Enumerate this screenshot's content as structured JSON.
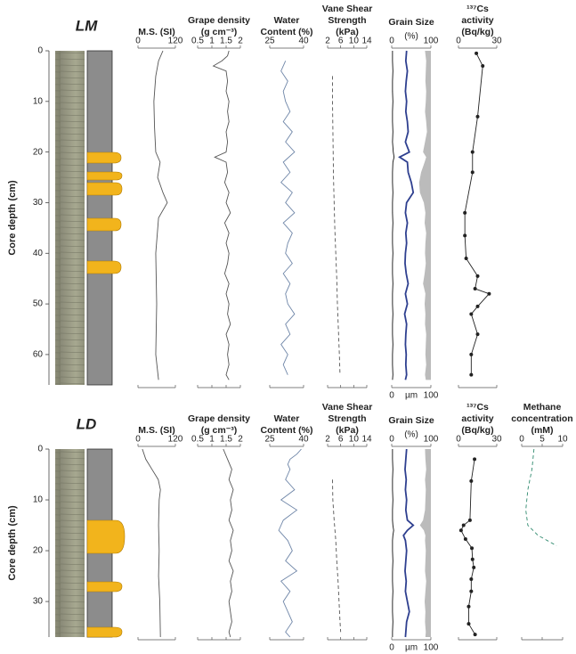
{
  "chart_data": [
    {
      "label": "LM",
      "ylabel": "Core depth (cm)",
      "ylim": [
        0,
        66
      ],
      "yticks": [
        0,
        10,
        20,
        30,
        40,
        50,
        60
      ],
      "tracks": [
        {
          "type": "line",
          "title": [
            "M.S. (SI)"
          ],
          "xlim": [
            0,
            120
          ],
          "xticks": [
            0,
            120
          ],
          "color": "#555555",
          "depth": [
            0,
            2,
            5,
            10,
            15,
            20,
            22,
            25,
            28,
            30,
            33,
            40,
            50,
            60,
            65
          ],
          "values": [
            80,
            66,
            57,
            51,
            53,
            57,
            71,
            63,
            80,
            94,
            66,
            57,
            60,
            57,
            66
          ]
        },
        {
          "type": "line",
          "title": [
            "Grape density",
            "(g cm⁻³)"
          ],
          "xlim": [
            0.5,
            2
          ],
          "xticks": [
            0.5,
            1,
            1.5,
            2
          ],
          "color": "#555555",
          "depth": [
            0,
            1,
            2,
            3,
            4,
            6,
            8,
            10,
            12,
            14,
            16,
            18,
            20,
            21,
            22,
            24,
            26,
            28,
            30,
            32,
            34,
            36,
            38,
            40,
            42,
            44,
            46,
            48,
            50,
            52,
            54,
            56,
            58,
            60,
            62,
            64,
            65
          ],
          "values": [
            1.6,
            1.55,
            1.35,
            1.05,
            1.5,
            1.55,
            1.5,
            1.6,
            1.55,
            1.6,
            1.5,
            1.55,
            1.5,
            1.1,
            1.5,
            1.55,
            1.45,
            1.6,
            1.5,
            1.65,
            1.45,
            1.6,
            1.5,
            1.6,
            1.55,
            1.45,
            1.6,
            1.5,
            1.6,
            1.55,
            1.65,
            1.5,
            1.6,
            1.55,
            1.6,
            1.5,
            1.6
          ]
        },
        {
          "type": "line",
          "title": [
            "Water",
            "Content (%)"
          ],
          "xlim": [
            25,
            40
          ],
          "xticks": [
            25,
            40
          ],
          "color": "#6f86a8",
          "depth": [
            2,
            4,
            6,
            8,
            10,
            12,
            14,
            16,
            18,
            20,
            22,
            24,
            26,
            28,
            30,
            32,
            34,
            36,
            38,
            40,
            42,
            44,
            46,
            48,
            50,
            52,
            54,
            56,
            58,
            60,
            62,
            64
          ],
          "values": [
            32,
            30,
            33,
            31,
            32,
            34,
            31,
            35,
            32,
            36,
            31,
            34,
            30,
            35,
            32,
            36,
            31,
            35,
            33,
            32,
            35,
            31,
            34,
            32,
            33,
            36,
            32,
            34,
            30,
            33,
            31,
            33
          ]
        },
        {
          "type": "line",
          "title": [
            "Vane Shear",
            "Strength",
            "(kPa)"
          ],
          "xlim": [
            2,
            14
          ],
          "xticks": [
            2,
            6,
            10,
            14
          ],
          "color": "#555555",
          "dashed": true,
          "depth": [
            5,
            10,
            15,
            20,
            25,
            30,
            35,
            40,
            45,
            50,
            55,
            60,
            64
          ],
          "values": [
            3.5,
            3.5,
            3.6,
            3.7,
            3.8,
            4,
            4.2,
            4.5,
            4.8,
            5,
            5.3,
            5.6,
            5.8
          ]
        },
        {
          "type": "line",
          "title": [
            "Grain Size"
          ],
          "subtitle": "(%)",
          "xlim": [
            0,
            100
          ],
          "xticks": [
            0,
            100
          ],
          "x2label": "µm",
          "x2ticks": [
            0,
            100
          ],
          "depth": [
            0,
            2,
            4,
            6,
            8,
            10,
            12,
            14,
            16,
            18,
            20,
            21,
            22,
            24,
            26,
            28,
            30,
            32,
            34,
            36,
            38,
            40,
            42,
            44,
            46,
            48,
            50,
            52,
            54,
            56,
            58,
            60,
            62,
            64,
            65
          ],
          "series": [
            {
              "color": "#bbbbbb",
              "fill": true,
              "values": [
                85,
                88,
                87,
                86,
                88,
                87,
                85,
                88,
                90,
                85,
                80,
                88,
                84,
                75,
                70,
                72,
                82,
                86,
                84,
                88,
                86,
                85,
                87,
                84,
                80,
                86,
                84,
                86,
                85,
                88,
                87,
                86,
                88,
                85,
                87
              ]
            },
            {
              "color": "#2e3f8f",
              "values": [
                38,
                36,
                40,
                37,
                35,
                38,
                36,
                40,
                42,
                35,
                45,
                20,
                40,
                42,
                50,
                55,
                38,
                35,
                40,
                36,
                38,
                35,
                34,
                37,
                42,
                35,
                40,
                33,
                38,
                36,
                35,
                37,
                36,
                38,
                35
              ]
            },
            {
              "color": "#111111",
              "values": [
                2,
                2,
                3,
                2,
                2,
                3,
                2,
                2,
                3,
                2,
                4,
                6,
                3,
                2,
                2,
                3,
                2,
                2,
                3,
                2,
                2,
                3,
                2,
                2,
                3,
                2,
                2,
                3,
                2,
                2,
                3,
                2,
                2,
                3,
                2
              ]
            }
          ]
        },
        {
          "type": "line",
          "title": [
            "¹³⁷Cs",
            "activity",
            "(Bq/kg)"
          ],
          "xlim": [
            0,
            30
          ],
          "xticks": [
            0,
            30
          ],
          "color": "#222222",
          "markers": true,
          "depth": [
            0.5,
            3,
            13,
            20,
            24,
            32,
            36.5,
            41,
            44.5,
            47,
            48,
            50.5,
            52,
            56,
            60,
            64
          ],
          "values": [
            14,
            19,
            15,
            11,
            11,
            5,
            5,
            6,
            15,
            13,
            24,
            15,
            10,
            15,
            10,
            10
          ]
        }
      ]
    },
    {
      "label": "LD",
      "ylabel": "Core depth (cm)",
      "ylim": [
        0,
        37
      ],
      "yticks": [
        0,
        10,
        20,
        30
      ],
      "tracks": [
        {
          "type": "line",
          "title": [
            "M.S. (SI)"
          ],
          "xlim": [
            0,
            120
          ],
          "xticks": [
            0,
            120
          ],
          "color": "#555555",
          "depth": [
            0,
            2,
            4,
            6,
            8,
            10,
            15,
            20,
            25,
            30,
            37
          ],
          "values": [
            14,
            25,
            45,
            65,
            72,
            68,
            66,
            68,
            66,
            70,
            72
          ]
        },
        {
          "type": "line",
          "title": [
            "Grape density",
            "(g cm⁻³)"
          ],
          "xlim": [
            0.5,
            2
          ],
          "xticks": [
            0.5,
            1,
            1.5,
            2
          ],
          "color": "#555555",
          "depth": [
            0,
            2,
            4,
            6,
            8,
            10,
            12,
            14,
            16,
            18,
            20,
            22,
            24,
            26,
            28,
            30,
            32,
            34,
            36,
            37
          ],
          "values": [
            1.4,
            1.55,
            1.7,
            1.6,
            1.75,
            1.65,
            1.7,
            1.6,
            1.75,
            1.65,
            1.7,
            1.6,
            1.75,
            1.65,
            1.7,
            1.6,
            1.65,
            1.7,
            1.6,
            1.65
          ]
        },
        {
          "type": "line",
          "title": [
            "Water",
            "Content (%)"
          ],
          "xlim": [
            25,
            40
          ],
          "xticks": [
            25,
            40
          ],
          "color": "#6f86a8",
          "depth": [
            0,
            1,
            2,
            3,
            4,
            6,
            8,
            10,
            12,
            14,
            16,
            18,
            20,
            22,
            24,
            26,
            28,
            30,
            32,
            34,
            36,
            37
          ],
          "values": [
            39,
            37,
            34,
            33,
            34,
            32,
            36,
            30,
            37,
            31,
            29,
            33,
            35,
            32,
            37,
            30,
            34,
            31,
            33,
            35,
            32,
            34
          ]
        },
        {
          "type": "line",
          "title": [
            "Vane Shear",
            "Strength",
            "(kPa)"
          ],
          "xlim": [
            2,
            14
          ],
          "xticks": [
            2,
            6,
            10,
            14
          ],
          "color": "#555555",
          "dashed": true,
          "depth": [
            6,
            10,
            14,
            18,
            22,
            26,
            30,
            34,
            36
          ],
          "values": [
            3.5,
            3.6,
            4,
            4.5,
            4.8,
            5.2,
            5.5,
            5.8,
            6
          ]
        },
        {
          "type": "line",
          "title": [
            "Grain Size"
          ],
          "subtitle": "(%)",
          "xlim": [
            0,
            100
          ],
          "xticks": [
            0,
            100
          ],
          "x2label": "µm",
          "x2ticks": [
            0,
            100
          ],
          "depth": [
            0,
            2,
            4,
            6,
            8,
            10,
            12,
            14,
            15,
            16,
            17,
            18,
            20,
            22,
            24,
            26,
            28,
            30,
            32,
            34,
            36,
            37
          ],
          "series": [
            {
              "color": "#bbbbbb",
              "fill": true,
              "values": [
                85,
                86,
                88,
                85,
                87,
                86,
                85,
                80,
                72,
                82,
                86,
                85,
                87,
                86,
                85,
                88,
                86,
                84,
                86,
                85,
                87,
                86
              ]
            },
            {
              "color": "#2e3f8f",
              "values": [
                38,
                36,
                34,
                37,
                35,
                38,
                36,
                40,
                55,
                40,
                30,
                35,
                38,
                36,
                34,
                37,
                35,
                40,
                45,
                38,
                36,
                35
              ]
            },
            {
              "color": "#111111",
              "values": [
                2,
                2,
                3,
                2,
                2,
                3,
                2,
                2,
                3,
                5,
                3,
                2,
                2,
                3,
                2,
                2,
                3,
                2,
                2,
                3,
                2,
                2
              ]
            }
          ]
        },
        {
          "type": "line",
          "title": [
            "¹³⁷Cs",
            "activity",
            "(Bq/kg)"
          ],
          "xlim": [
            0,
            30
          ],
          "xticks": [
            0,
            30
          ],
          "color": "#222222",
          "markers": true,
          "depth": [
            2,
            6.3,
            14,
            15,
            16,
            17.7,
            19.5,
            21.7,
            23.3,
            25.6,
            28,
            31,
            34.4,
            36.5
          ],
          "values": [
            12.6,
            10,
            9,
            4,
            2,
            5.5,
            10.5,
            11,
            12,
            10,
            10,
            8,
            8,
            13
          ]
        },
        {
          "type": "line",
          "title": [
            "Methane",
            "concentration",
            "(mM)"
          ],
          "xlim": [
            0,
            10
          ],
          "xticks": [
            0,
            5,
            10
          ],
          "color": "#2f8a6e",
          "dashed": true,
          "depth": [
            0,
            4,
            8,
            12,
            15,
            17,
            19
          ],
          "values": [
            3,
            2.5,
            1.5,
            1,
            1.5,
            4,
            8.5
          ]
        }
      ]
    }
  ]
}
